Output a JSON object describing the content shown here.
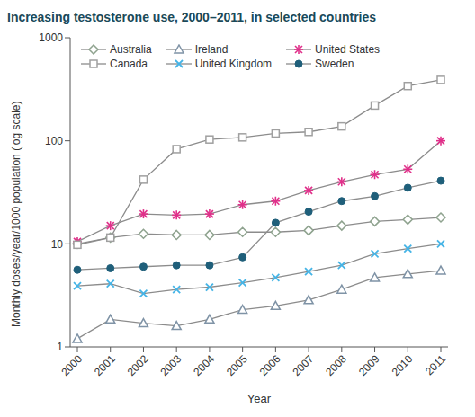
{
  "chart_data": {
    "type": "line",
    "title": "Increasing testosterone use, 2000–2011, in selected countries",
    "x_label": "Year",
    "y_label": "Monthly doses/year/1000 population (log scale)",
    "categories": [
      "2000",
      "2001",
      "2002",
      "2003",
      "2004",
      "2005",
      "2006",
      "2007",
      "2008",
      "2009",
      "2010",
      "2011"
    ],
    "series": [
      {
        "name": "Australia",
        "color": "#8fa38f",
        "marker": "diamond",
        "values": [
          10,
          11.5,
          12.5,
          12.2,
          12.2,
          13,
          13,
          13.5,
          15,
          16.5,
          17.2,
          18
        ]
      },
      {
        "name": "Ireland",
        "color": "#7f93a6",
        "marker": "triangle",
        "values": [
          1.2,
          1.85,
          1.7,
          1.6,
          1.85,
          2.3,
          2.5,
          2.85,
          3.6,
          4.7,
          5.1,
          5.5
        ]
      },
      {
        "name": "United States",
        "color": "#e0308a",
        "marker": "star",
        "values": [
          10.5,
          15,
          19.5,
          19,
          19.5,
          24,
          26,
          33,
          40,
          47,
          53,
          100
        ]
      },
      {
        "name": "Canada",
        "color": "#a0a0a0",
        "marker": "square",
        "values": [
          9.8,
          11.5,
          42,
          83,
          103,
          108,
          118,
          122,
          138,
          220,
          340,
          390
        ]
      },
      {
        "name": "United Kingdom",
        "color": "#45b4e6",
        "marker": "x",
        "values": [
          3.9,
          4.1,
          3.3,
          3.6,
          3.8,
          4.2,
          4.7,
          5.4,
          6.2,
          8,
          9,
          10
        ]
      },
      {
        "name": "Sweden",
        "color": "#1f5f7a",
        "marker": "circle",
        "values": [
          5.6,
          5.8,
          6,
          6.2,
          6.2,
          7.4,
          16,
          20.5,
          26,
          29,
          35,
          41
        ]
      }
    ],
    "ylim": [
      1,
      1000
    ],
    "yticks": [
      1,
      10,
      100,
      1000
    ],
    "log": "y",
    "grid": false,
    "legend": "top-left"
  }
}
